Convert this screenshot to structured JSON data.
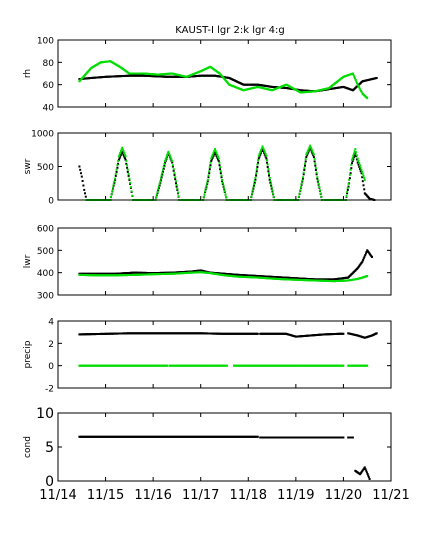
{
  "figure": {
    "title": "KAUST-I  lgr 2:k lgr 4:g",
    "series_colors": {
      "lgr 2": "#000000",
      "lgr 4": "#00dd00"
    }
  },
  "chart_data": [
    {
      "type": "scatter",
      "ylabel": "rh",
      "ylim": [
        40,
        100
      ],
      "yticks": [
        40,
        60,
        80,
        100
      ],
      "xlim": [
        0,
        7
      ],
      "xticks": [],
      "series": [
        {
          "color": "#000000",
          "segments": [
            {
              "x": [
                0.45,
                0.7,
                1.0,
                1.5,
                1.8,
                2.3,
                2.7,
                3.0,
                3.3,
                3.6,
                3.9,
                4.2,
                4.5,
                4.8,
                5.1,
                5.4,
                5.7,
                6.0,
                6.2,
                6.4,
                6.5,
                6.7
              ],
              "y": [
                65,
                66,
                67,
                68,
                68,
                67,
                67,
                68,
                68,
                66,
                60,
                60,
                58,
                57,
                55,
                54,
                56,
                58,
                55,
                63,
                64,
                66
              ]
            }
          ]
        },
        {
          "color": "#00dd00",
          "segments": [
            {
              "x": [
                0.45,
                0.7,
                0.9,
                1.1,
                1.3,
                1.5,
                1.8,
                2.1,
                2.4,
                2.7,
                3.0,
                3.2,
                3.4,
                3.6,
                3.9,
                4.2,
                4.5,
                4.8,
                5.1,
                5.4,
                5.7,
                6.0,
                6.2,
                6.3,
                6.4,
                6.5
              ],
              "y": [
                63,
                75,
                80,
                81,
                76,
                70,
                70,
                69,
                70,
                67,
                72,
                76,
                70,
                60,
                55,
                58,
                55,
                60,
                53,
                54,
                57,
                67,
                70,
                60,
                52,
                48
              ]
            }
          ]
        }
      ]
    },
    {
      "type": "scatter",
      "ylabel": "swr",
      "ylim": [
        0,
        1000
      ],
      "yticks": [
        0,
        500,
        1000
      ],
      "xlim": [
        0,
        7
      ],
      "xticks": [],
      "series": [
        {
          "color": "#000000",
          "segments": [
            {
              "x": [
                0.45,
                0.5,
                0.55,
                0.6
              ],
              "y": [
                500,
                350,
                150,
                0
              ]
            },
            {
              "x": [
                1.1,
                1.2,
                1.28,
                1.35,
                1.42,
                1.5,
                1.58
              ],
              "y": [
                0,
                300,
                600,
                720,
                600,
                300,
                0
              ]
            },
            {
              "x": [
                2.05,
                2.15,
                2.25,
                2.32,
                2.4,
                2.48,
                2.55
              ],
              "y": [
                0,
                250,
                550,
                700,
                560,
                250,
                0
              ]
            },
            {
              "x": [
                3.05,
                3.15,
                3.22,
                3.3,
                3.38,
                3.45,
                3.55
              ],
              "y": [
                0,
                280,
                580,
                710,
                580,
                280,
                0
              ]
            },
            {
              "x": [
                4.05,
                4.15,
                4.22,
                4.3,
                4.38,
                4.45,
                4.55
              ],
              "y": [
                0,
                300,
                620,
                760,
                620,
                300,
                0
              ]
            },
            {
              "x": [
                5.05,
                5.15,
                5.22,
                5.3,
                5.38,
                5.45,
                5.55
              ],
              "y": [
                0,
                320,
                640,
                780,
                640,
                320,
                0
              ]
            },
            {
              "x": [
                6.05,
                6.12,
                6.18,
                6.25,
                6.3,
                6.38,
                6.45,
                6.55,
                6.65
              ],
              "y": [
                0,
                250,
                550,
                700,
                560,
                400,
                100,
                20,
                0
              ]
            }
          ]
        },
        {
          "color": "#00dd00",
          "segments": [
            {
              "x": [
                0.6,
                0.75,
                0.9,
                1.05,
                1.1
              ],
              "y": [
                0,
                0,
                0,
                0,
                0
              ]
            },
            {
              "x": [
                1.1,
                1.2,
                1.28,
                1.35,
                1.42,
                1.5,
                1.58
              ],
              "y": [
                0,
                320,
                650,
                780,
                650,
                320,
                0
              ]
            },
            {
              "x": [
                1.6,
                1.75,
                1.9,
                2.0
              ],
              "y": [
                0,
                0,
                0,
                0
              ]
            },
            {
              "x": [
                2.05,
                2.15,
                2.25,
                2.32,
                2.4,
                2.48,
                2.55
              ],
              "y": [
                0,
                280,
                580,
                720,
                580,
                280,
                0
              ]
            },
            {
              "x": [
                2.6,
                2.75,
                2.9,
                3.0
              ],
              "y": [
                0,
                0,
                0,
                0
              ]
            },
            {
              "x": [
                3.05,
                3.15,
                3.22,
                3.3,
                3.38,
                3.45,
                3.55
              ],
              "y": [
                0,
                300,
                620,
                760,
                620,
                300,
                0
              ]
            },
            {
              "x": [
                3.6,
                3.75,
                3.9,
                4.0
              ],
              "y": [
                0,
                0,
                0,
                0
              ]
            },
            {
              "x": [
                4.05,
                4.15,
                4.22,
                4.3,
                4.38,
                4.45,
                4.55
              ],
              "y": [
                0,
                330,
                660,
                800,
                660,
                330,
                0
              ]
            },
            {
              "x": [
                4.6,
                4.75,
                4.9,
                5.0
              ],
              "y": [
                0,
                0,
                0,
                0
              ]
            },
            {
              "x": [
                5.05,
                5.15,
                5.22,
                5.3,
                5.38,
                5.45,
                5.55
              ],
              "y": [
                0,
                340,
                680,
                810,
                680,
                340,
                0
              ]
            },
            {
              "x": [
                5.6,
                5.75,
                5.9,
                6.0
              ],
              "y": [
                0,
                0,
                0,
                0
              ]
            },
            {
              "x": [
                6.05,
                6.12,
                6.18,
                6.25,
                6.3,
                6.38,
                6.45
              ],
              "y": [
                0,
                300,
                600,
                760,
                620,
                450,
                300
              ]
            }
          ]
        }
      ]
    },
    {
      "type": "scatter",
      "ylabel": "lwr",
      "ylim": [
        300,
        600
      ],
      "yticks": [
        300,
        400,
        500,
        600
      ],
      "xlim": [
        0,
        7
      ],
      "xticks": [],
      "series": [
        {
          "color": "#000000",
          "segments": [
            {
              "x": [
                0.45,
                0.8,
                1.2,
                1.6,
                2.0,
                2.4,
                2.8,
                3.0,
                3.2,
                3.5,
                3.8,
                4.2,
                4.6,
                5.0,
                5.4,
                5.8,
                6.1,
                6.3,
                6.4,
                6.5,
                6.6
              ],
              "y": [
                395,
                395,
                395,
                400,
                398,
                400,
                405,
                410,
                400,
                395,
                390,
                385,
                380,
                375,
                370,
                370,
                378,
                420,
                450,
                500,
                470
              ]
            }
          ]
        },
        {
          "color": "#00dd00",
          "segments": [
            {
              "x": [
                0.45,
                0.8,
                1.2,
                1.6,
                2.0,
                2.4,
                2.8,
                3.0,
                3.2,
                3.5,
                3.8,
                4.2,
                4.6,
                5.0,
                5.4,
                5.8,
                6.1,
                6.3,
                6.4,
                6.5
              ],
              "y": [
                390,
                388,
                388,
                390,
                393,
                395,
                400,
                402,
                398,
                388,
                382,
                378,
                372,
                368,
                365,
                362,
                365,
                372,
                378,
                385
              ]
            }
          ]
        }
      ]
    },
    {
      "type": "scatter",
      "ylabel": "precip",
      "ylim": [
        -2,
        4
      ],
      "yticks": [
        -2,
        0,
        2,
        4
      ],
      "xlim": [
        0,
        7
      ],
      "xticks": [],
      "series": [
        {
          "color": "#000000",
          "segments": [
            {
              "x": [
                0.45,
                1.0,
                1.5,
                2.0,
                2.5,
                3.0,
                3.5,
                4.0,
                4.2
              ],
              "y": [
                2.8,
                2.85,
                2.9,
                2.9,
                2.9,
                2.9,
                2.85,
                2.85,
                2.85
              ]
            },
            {
              "x": [
                4.25,
                4.5,
                4.8,
                5.0,
                5.3,
                5.6,
                5.9,
                6.0
              ],
              "y": [
                2.85,
                2.85,
                2.85,
                2.6,
                2.7,
                2.8,
                2.85,
                2.85
              ]
            },
            {
              "x": [
                6.1,
                6.3,
                6.45,
                6.6,
                6.7
              ],
              "y": [
                2.9,
                2.7,
                2.5,
                2.7,
                2.9
              ]
            }
          ]
        },
        {
          "color": "#00dd00",
          "segments": [
            {
              "x": [
                0.45,
                0.8,
                1.2,
                1.6,
                2.0,
                2.3
              ],
              "y": [
                0,
                0,
                0,
                0,
                0,
                0
              ]
            },
            {
              "x": [
                2.35,
                2.7,
                3.0,
                3.3,
                3.55
              ],
              "y": [
                0,
                0,
                0,
                0,
                0
              ]
            },
            {
              "x": [
                3.7,
                4.0,
                4.4,
                4.8,
                5.2,
                5.6,
                6.0
              ],
              "y": [
                0,
                0,
                0,
                0,
                0,
                0,
                0
              ]
            },
            {
              "x": [
                6.1,
                6.3,
                6.5
              ],
              "y": [
                0,
                0,
                0
              ]
            }
          ]
        }
      ]
    },
    {
      "type": "scatter",
      "ylabel": "cond",
      "ylim": [
        0,
        10
      ],
      "yticks": [
        0,
        5,
        10
      ],
      "xlim": [
        0,
        7
      ],
      "xticks": [
        "11/14",
        "11/15",
        "11/16",
        "11/17",
        "11/18",
        "11/19",
        "11/20",
        "11/21"
      ],
      "series": [
        {
          "color": "#000000",
          "segments": [
            {
              "x": [
                0.45,
                1.0,
                1.5,
                2.0,
                2.5,
                3.0,
                3.5,
                4.0,
                4.2
              ],
              "y": [
                6.5,
                6.5,
                6.5,
                6.5,
                6.5,
                6.5,
                6.5,
                6.5,
                6.5
              ]
            },
            {
              "x": [
                4.25,
                4.6,
                5.0,
                5.4,
                5.8,
                6.0
              ],
              "y": [
                6.4,
                6.4,
                6.4,
                6.4,
                6.4,
                6.4
              ]
            },
            {
              "x": [
                6.1,
                6.2
              ],
              "y": [
                6.4,
                6.4
              ]
            },
            {
              "x": [
                6.25,
                6.35,
                6.45,
                6.55
              ],
              "y": [
                1.5,
                1.0,
                2.0,
                0.3
              ]
            }
          ]
        }
      ]
    }
  ]
}
